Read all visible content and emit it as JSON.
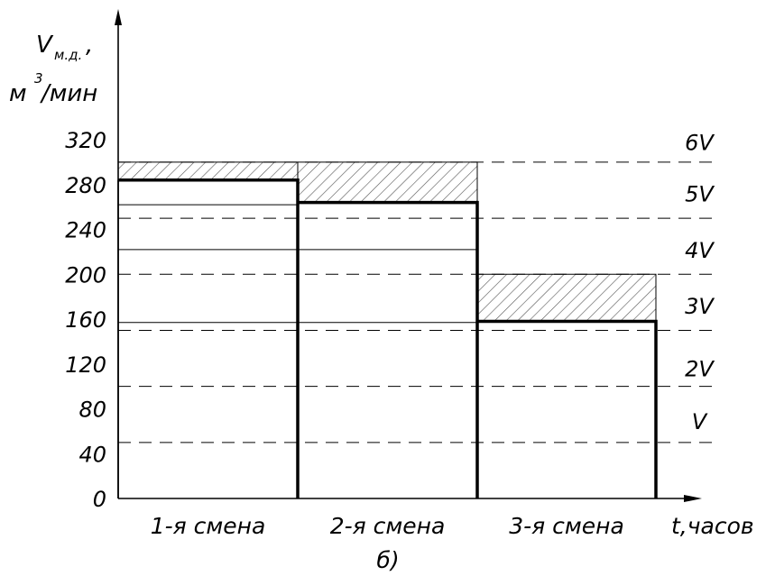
{
  "chart_data": {
    "type": "bar",
    "ylabel": {
      "symbol": "V",
      "subscript": "м.д.",
      "comma": ",",
      "unit_base": "м",
      "unit_exp": "3",
      "unit_rest": "/мин"
    },
    "xlabel": "t,часов",
    "caption": "б)",
    "y_ticks": [
      "0",
      "40",
      "80",
      "120",
      "160",
      "200",
      "240",
      "280",
      "320"
    ],
    "ylim": [
      0,
      320
    ],
    "categories": [
      "1-я смена",
      "2-я смена",
      "3-я смена"
    ],
    "values": [
      284,
      264,
      158
    ],
    "hatched_upper": [
      300,
      300,
      200
    ],
    "thin_lines": [
      {
        "y": 262,
        "from": 0,
        "to": 1
      },
      {
        "y": 222,
        "from": 0,
        "to": 2
      },
      {
        "y": 157,
        "from": 0,
        "to": 2
      }
    ],
    "levels": [
      {
        "label": "V",
        "value": 50
      },
      {
        "label": "2V",
        "value": 100
      },
      {
        "label": "3V",
        "value": 150
      },
      {
        "label": "4V",
        "value": 200
      },
      {
        "label": "5V",
        "value": 250
      },
      {
        "label": "6V",
        "value": 300
      }
    ],
    "level_label_values": [
      {
        "label": "6V",
        "value": 318
      },
      {
        "label": "5V",
        "value": 272
      },
      {
        "label": "4V",
        "value": 222
      },
      {
        "label": "3V",
        "value": 172
      },
      {
        "label": "2V",
        "value": 116
      },
      {
        "label": "V",
        "value": 69
      }
    ],
    "colors": {
      "line": "#000000",
      "hatch": "#555555"
    }
  }
}
